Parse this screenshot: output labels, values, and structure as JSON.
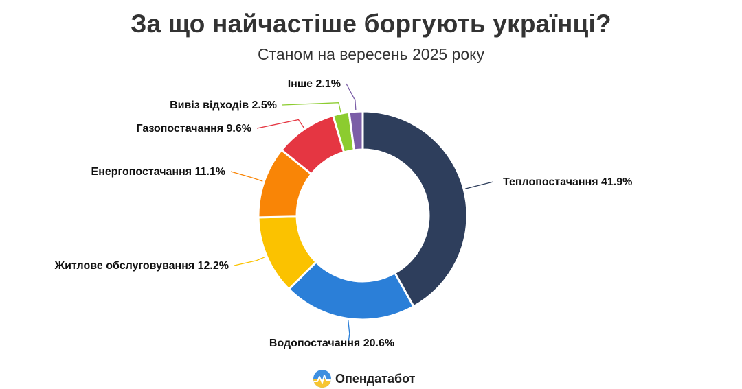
{
  "title": "За що найчастіше боргують українці?",
  "subtitle": "Станом на вересень 2025 року",
  "brand": {
    "name": "Опендатабот",
    "icon": "opendatabot-logo-icon"
  },
  "colors": {
    "heat": "#2e3e5c",
    "water": "#2b7fd8",
    "housing": "#fbc200",
    "electricity": "#f98506",
    "gas": "#e53642",
    "waste": "#8ccc2f",
    "other": "#7b5ea7"
  },
  "chart_data": {
    "type": "pie",
    "donut": true,
    "unit": "%",
    "slices": [
      {
        "label": "Теплопостачання",
        "value": 41.9,
        "display": "Теплопостачання 41.9%",
        "color": "#2e3e5c"
      },
      {
        "label": "Водопостачання",
        "value": 20.6,
        "display": "Водопостачання 20.6%",
        "color": "#2b7fd8"
      },
      {
        "label": "Житлове обслуговування",
        "value": 12.2,
        "display": "Житлове обслуговування 12.2%",
        "color": "#fbc200"
      },
      {
        "label": "Енергопостачання",
        "value": 11.1,
        "display": "Енергопостачання 11.1%",
        "color": "#f98506"
      },
      {
        "label": "Газопостачання",
        "value": 9.6,
        "display": "Газопостачання 9.6%",
        "color": "#e53642"
      },
      {
        "label": "Вивіз відходів",
        "value": 2.5,
        "display": "Вивіз відходів 2.5%",
        "color": "#8ccc2f"
      },
      {
        "label": "Інше",
        "value": 2.1,
        "display": "Інше 2.1%",
        "color": "#7b5ea7"
      }
    ]
  }
}
